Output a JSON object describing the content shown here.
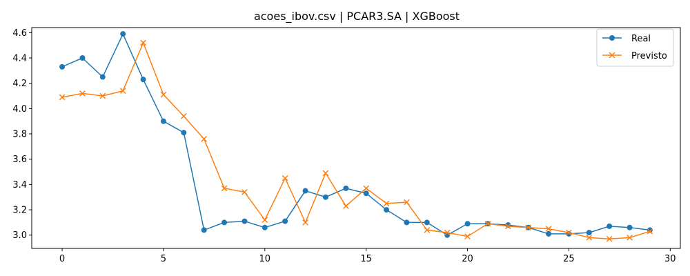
{
  "chart_data": {
    "type": "line",
    "title": "acoes_ibov.csv | PCAR3.SA | XGBoost",
    "xlabel": "",
    "ylabel": "",
    "xlim": [
      -1.5,
      30.5
    ],
    "ylim": [
      2.895,
      4.64
    ],
    "xticks": [
      0,
      5,
      10,
      15,
      20,
      25,
      30
    ],
    "xtick_labels": [
      "0",
      "5",
      "10",
      "15",
      "20",
      "25",
      "30"
    ],
    "yticks": [
      3.0,
      3.2,
      3.4,
      3.6,
      3.8,
      4.0,
      4.2,
      4.4,
      4.6
    ],
    "ytick_labels": [
      "3.0",
      "3.2",
      "3.4",
      "3.6",
      "3.8",
      "4.0",
      "4.2",
      "4.4",
      "4.6"
    ],
    "grid": false,
    "legend_position": "top-right",
    "x": [
      0,
      1,
      2,
      3,
      4,
      5,
      6,
      7,
      8,
      9,
      10,
      11,
      12,
      13,
      14,
      15,
      16,
      17,
      18,
      19,
      20,
      21,
      22,
      23,
      24,
      25,
      26,
      27,
      28,
      29
    ],
    "series": [
      {
        "name": "Real",
        "color": "#1f77b4",
        "marker": "circle",
        "values": [
          4.33,
          4.4,
          4.25,
          4.59,
          4.23,
          3.9,
          3.81,
          3.04,
          3.1,
          3.11,
          3.06,
          3.11,
          3.35,
          3.3,
          3.37,
          3.33,
          3.2,
          3.1,
          3.1,
          3.0,
          3.09,
          3.09,
          3.08,
          3.06,
          3.01,
          3.01,
          3.02,
          3.07,
          3.06,
          3.04
        ]
      },
      {
        "name": "Previsto",
        "color": "#ff7f0e",
        "marker": "x",
        "values": [
          4.09,
          4.12,
          4.1,
          4.14,
          4.52,
          4.11,
          3.94,
          3.76,
          3.37,
          3.34,
          3.12,
          3.45,
          3.1,
          3.49,
          3.23,
          3.37,
          3.25,
          3.26,
          3.04,
          3.02,
          2.99,
          3.09,
          3.07,
          3.06,
          3.05,
          3.02,
          2.98,
          2.97,
          2.98,
          3.03
        ]
      }
    ]
  }
}
